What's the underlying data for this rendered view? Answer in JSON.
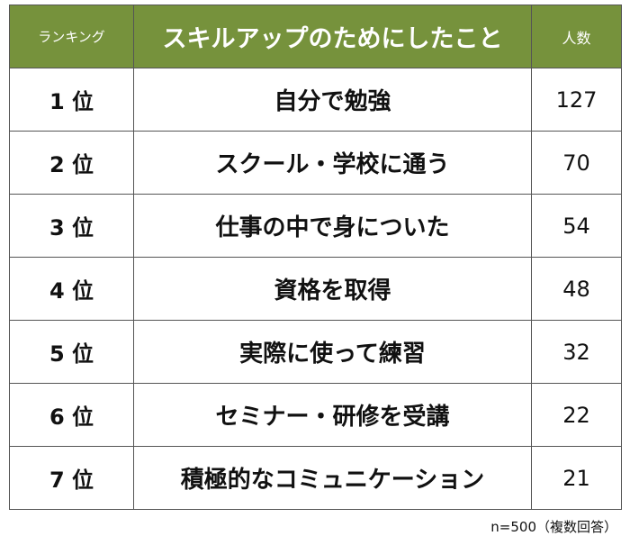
{
  "table": {
    "header": [
      "ランキング",
      "スキルアップのためにしたこと",
      "人数"
    ],
    "rows": [
      [
        "1 位",
        "自分で勉強",
        127
      ],
      [
        "2 位",
        "スクール・学校に通う",
        70
      ],
      [
        "3 位",
        "仕事の中で身についた",
        54
      ],
      [
        "4 位",
        "資格を取得",
        48
      ],
      [
        "5 位",
        "実際に使って練習",
        32
      ],
      [
        "6 位",
        "セミナー・研修を受講",
        22
      ],
      [
        "7 位",
        "積極的なコミュニケーション",
        21
      ]
    ]
  },
  "footnote": "n=500（複数回答）"
}
